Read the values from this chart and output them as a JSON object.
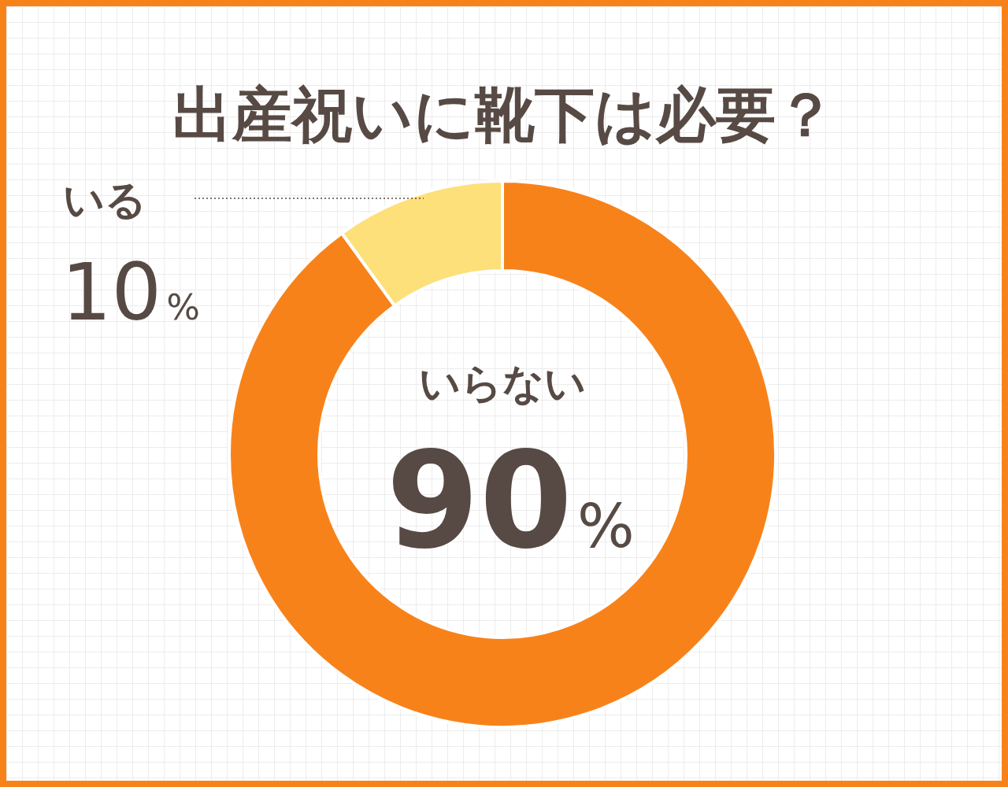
{
  "chart_data": {
    "type": "donut",
    "title": "出産祝いに靴下は必要？",
    "categories": [
      "いらない",
      "いる"
    ],
    "values": [
      90,
      10
    ],
    "colors": [
      "#f8821a",
      "#fde07a"
    ],
    "value_labels": [
      "90%",
      "10%"
    ]
  }
}
